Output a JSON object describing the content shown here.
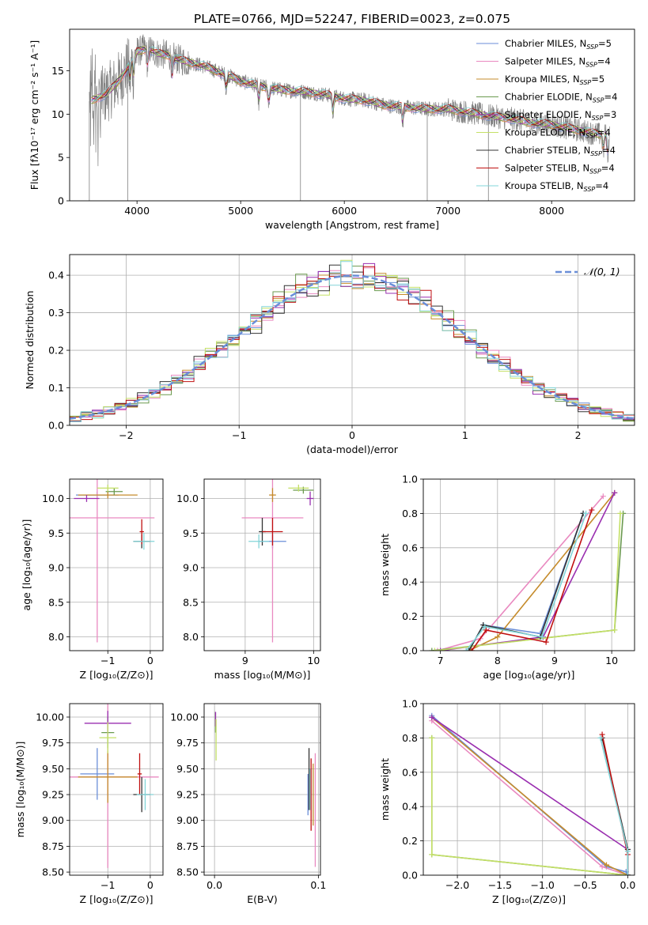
{
  "title": "PLATE=0766, MJD=52247, FIBERID=0023, z=0.075",
  "models": [
    {
      "name": "Chabrier MILES",
      "nssp": "5",
      "color": "#6a8ed8"
    },
    {
      "name": "Salpeter MILES",
      "nssp": "4",
      "color": "#e989c0"
    },
    {
      "name": "Kroupa MILES",
      "nssp": "5",
      "color": "#c58b2b"
    },
    {
      "name": "Chabrier ELODIE",
      "nssp": "4",
      "color": "#6b9a4f"
    },
    {
      "name": "Salpeter ELODIE",
      "nssp": "3",
      "color": "#9a2fb0"
    },
    {
      "name": "Kroupa ELODIE",
      "nssp": "4",
      "color": "#c4e066"
    },
    {
      "name": "Chabrier STELIB",
      "nssp": "4",
      "color": "#333333"
    },
    {
      "name": "Salpeter STELIB",
      "nssp": "4",
      "color": "#c01010"
    },
    {
      "name": "Kroupa STELIB",
      "nssp": "4",
      "color": "#82d4d8"
    }
  ],
  "nssp_prefix": ", N",
  "nssp_sub": "SSP",
  "chart_data": [
    {
      "id": "spectrum",
      "type": "line",
      "xlabel": "wavelength [Angstrom, rest frame]",
      "ylabel": "Flux [fλ10⁻¹⁷ erg cm⁻² s⁻¹ A⁻¹]",
      "xlim": [
        3350,
        8800
      ],
      "ylim": [
        0,
        19.8
      ],
      "xticks": [
        4000,
        5000,
        6000,
        7000,
        8000
      ],
      "yticks": [
        0,
        5,
        10,
        15
      ],
      "legend": "upper-right",
      "observed_color": "#808080",
      "continuum": {
        "x": [
          3540,
          3600,
          3700,
          3800,
          3900,
          4000,
          4100,
          4200,
          4300,
          4400,
          4500,
          4600,
          4700,
          4800,
          4900,
          5000,
          5200,
          5400,
          5600,
          5800,
          6000,
          6200,
          6400,
          6600,
          6800,
          7000,
          7200,
          7400,
          7600,
          7800,
          8000,
          8200,
          8400,
          8550
        ],
        "y": [
          11.5,
          11.8,
          12.3,
          13.5,
          15.2,
          17.2,
          17.6,
          17.0,
          16.8,
          16.3,
          16.0,
          15.7,
          15.3,
          14.8,
          14.4,
          13.8,
          13.2,
          12.8,
          12.6,
          12.3,
          11.8,
          11.6,
          11.0,
          10.8,
          10.6,
          10.6,
          10.2,
          9.8,
          9.5,
          9.0,
          8.8,
          8.3,
          7.8,
          7.5
        ]
      }
    },
    {
      "id": "residuals",
      "type": "histogram",
      "xlabel": "(data-model)/error",
      "ylabel": "Normed distribution",
      "xlim": [
        -2.5,
        2.5
      ],
      "ylim": [
        0,
        0.455
      ],
      "xticks": [
        -2,
        -1,
        0,
        1,
        2
      ],
      "yticks": [
        0.0,
        0.1,
        0.2,
        0.3,
        0.4
      ],
      "reference_label": "𝒩(0, 1)",
      "reference_color": "#6a8ed8",
      "bins": [
        -2.5,
        2.5,
        50
      ],
      "legend": "upper-right"
    },
    {
      "id": "age_vs_Z",
      "type": "errorbar",
      "xlabel": "Z [log₁₀(Z/Z⊙)]",
      "ylabel": "age  [log₁₀(age/yr)]",
      "xlim": [
        -1.9,
        0.3
      ],
      "ylim": [
        7.8,
        10.28
      ],
      "xticks": [
        -1,
        0
      ],
      "yticks": [
        8.0,
        8.5,
        9.0,
        9.5,
        10.0
      ],
      "points": [
        {
          "m": 0,
          "x": -1.25,
          "xerr": 0.5,
          "y": 10.05,
          "yerr": 0.05
        },
        {
          "m": 1,
          "x": -1.25,
          "xerr": 1.35,
          "y": 9.72,
          "yerr": 1.8
        },
        {
          "m": 2,
          "x": -1.0,
          "xerr": 0.7,
          "y": 10.05,
          "yerr": 0.05
        },
        {
          "m": 3,
          "x": -0.85,
          "xerr": 0.2,
          "y": 10.1,
          "yerr": 0.05
        },
        {
          "m": 4,
          "x": -1.5,
          "xerr": 0.3,
          "y": 10.0,
          "yerr": 0.05
        },
        {
          "m": 5,
          "x": -1.0,
          "xerr": 0.25,
          "y": 10.15,
          "yerr": 0.05
        },
        {
          "m": 6,
          "x": -0.2,
          "xerr": 0.2,
          "y": 9.38,
          "yerr": 0.1
        },
        {
          "m": 7,
          "x": -0.2,
          "xerr": 0.05,
          "y": 9.52,
          "yerr": 0.18
        },
        {
          "m": 8,
          "x": -0.15,
          "xerr": 0.25,
          "y": 9.38,
          "yerr": 0.12
        }
      ]
    },
    {
      "id": "age_vs_mass",
      "type": "errorbar",
      "xlabel": "mass [log₁₀(M/M⊙)]",
      "ylabel": "",
      "xlim": [
        8.4,
        10.1
      ],
      "ylim": [
        7.8,
        10.28
      ],
      "xticks": [
        9,
        10
      ],
      "yticks": [
        8.0,
        8.5,
        9.0,
        9.5,
        10.0
      ],
      "points": [
        {
          "m": 0,
          "x": 9.4,
          "xerr": 0.2,
          "y": 9.38,
          "yerr": 0.1
        },
        {
          "m": 1,
          "x": 9.4,
          "xerr": 0.45,
          "y": 9.72,
          "yerr": 1.8
        },
        {
          "m": 2,
          "x": 9.4,
          "xerr": 0.05,
          "y": 10.05,
          "yerr": 0.1
        },
        {
          "m": 3,
          "x": 9.85,
          "xerr": 0.15,
          "y": 10.12,
          "yerr": 0.05
        },
        {
          "m": 4,
          "x": 9.95,
          "xerr": 0.05,
          "y": 10.0,
          "yerr": 0.1
        },
        {
          "m": 5,
          "x": 9.78,
          "xerr": 0.15,
          "y": 10.15,
          "yerr": 0.05
        },
        {
          "m": 6,
          "x": 9.25,
          "xerr": 0.05,
          "y": 9.52,
          "yerr": 0.2
        },
        {
          "m": 7,
          "x": 9.4,
          "xerr": 0.15,
          "y": 9.52,
          "yerr": 0.2
        },
        {
          "m": 8,
          "x": 9.2,
          "xerr": 0.15,
          "y": 9.38,
          "yerr": 0.1
        }
      ]
    },
    {
      "id": "mass_weight_vs_age",
      "type": "line",
      "xlabel": "age  [log₁₀(age/yr)]",
      "ylabel": "mass weight",
      "xlim": [
        6.7,
        10.4
      ],
      "ylim": [
        0,
        1.0
      ],
      "xticks": [
        7,
        8,
        9,
        10
      ],
      "yticks": [
        0.0,
        0.2,
        0.4,
        0.6,
        0.8,
        1.0
      ],
      "series": [
        {
          "m": 0,
          "x": [
            7.5,
            7.75,
            8.75,
            9.5
          ],
          "y": [
            0.0,
            0.15,
            0.1,
            0.8
          ]
        },
        {
          "m": 1,
          "x": [
            6.95,
            7.7,
            9.85
          ],
          "y": [
            0.0,
            0.07,
            0.9
          ]
        },
        {
          "m": 2,
          "x": [
            7.5,
            8.0,
            10.05
          ],
          "y": [
            0.0,
            0.08,
            0.92
          ]
        },
        {
          "m": 3,
          "x": [
            6.85,
            10.05,
            10.2
          ],
          "y": [
            0.0,
            0.12,
            0.8
          ]
        },
        {
          "m": 4,
          "x": [
            7.0,
            8.8,
            10.05
          ],
          "y": [
            0.0,
            0.08,
            0.92
          ]
        },
        {
          "m": 5,
          "x": [
            6.9,
            10.05,
            10.15
          ],
          "y": [
            0.0,
            0.12,
            0.8
          ]
        },
        {
          "m": 6,
          "x": [
            7.5,
            7.75,
            8.75,
            9.5
          ],
          "y": [
            0.0,
            0.15,
            0.08,
            0.8
          ]
        },
        {
          "m": 7,
          "x": [
            7.55,
            7.8,
            8.85,
            9.65
          ],
          "y": [
            0.0,
            0.12,
            0.05,
            0.82
          ]
        },
        {
          "m": 8,
          "x": [
            7.45,
            7.78,
            8.78,
            9.55
          ],
          "y": [
            0.0,
            0.14,
            0.08,
            0.8
          ]
        }
      ]
    },
    {
      "id": "mass_vs_Z",
      "type": "errorbar",
      "xlabel": "Z [log₁₀(Z/Z⊙)]",
      "ylabel": "mass [log₁₀(M/M⊙)]",
      "xlim": [
        -1.9,
        0.3
      ],
      "ylim": [
        8.47,
        10.13
      ],
      "xticks": [
        -1,
        0
      ],
      "yticks": [
        8.5,
        8.75,
        9.0,
        9.25,
        9.5,
        9.75,
        10.0
      ],
      "points": [
        {
          "m": 0,
          "x": -1.25,
          "xerr": 0.4,
          "y": 9.45,
          "yerr": 0.25
        },
        {
          "m": 1,
          "x": -1.0,
          "xerr": 1.2,
          "y": 9.42,
          "yerr": 0.88
        },
        {
          "m": 2,
          "x": -1.0,
          "xerr": 0.7,
          "y": 9.42,
          "yerr": 0.25
        },
        {
          "m": 3,
          "x": -1.0,
          "xerr": 0.15,
          "y": 9.85,
          "yerr": 0.15
        },
        {
          "m": 4,
          "x": -1.0,
          "xerr": 0.55,
          "y": 9.94,
          "yerr": 0.12
        },
        {
          "m": 5,
          "x": -1.0,
          "xerr": 0.2,
          "y": 9.8,
          "yerr": 0.15
        },
        {
          "m": 6,
          "x": -0.2,
          "xerr": 0.2,
          "y": 9.25,
          "yerr": 0.17
        },
        {
          "m": 7,
          "x": -0.25,
          "xerr": 0.05,
          "y": 9.45,
          "yerr": 0.2
        },
        {
          "m": 8,
          "x": -0.12,
          "xerr": 0.2,
          "y": 9.25,
          "yerr": 0.15
        }
      ]
    },
    {
      "id": "mass_vs_EBV",
      "type": "errorbar",
      "xlabel": "E(B-V)",
      "ylabel": "",
      "xlim": [
        -0.01,
        0.102
      ],
      "ylim": [
        8.47,
        10.13
      ],
      "xticks": [
        0.0,
        0.1
      ],
      "yticks": [
        8.5,
        8.75,
        9.0,
        9.25,
        9.5,
        9.75,
        10.0
      ],
      "points": [
        {
          "m": 0,
          "x": 0.09,
          "xerr": 0,
          "y": 9.25,
          "yerr": 0.2
        },
        {
          "m": 1,
          "x": 0.097,
          "xerr": 0,
          "y": 9.1,
          "yerr": 0.55
        },
        {
          "m": 2,
          "x": 0.095,
          "xerr": 0,
          "y": 9.25,
          "yerr": 0.3
        },
        {
          "m": 3,
          "x": 0.001,
          "xerr": 0,
          "y": 9.95,
          "yerr": 0.1
        },
        {
          "m": 4,
          "x": 0.001,
          "xerr": 0,
          "y": 9.98,
          "yerr": 0.07
        },
        {
          "m": 5,
          "x": 0.0015,
          "xerr": 0,
          "y": 9.78,
          "yerr": 0.2
        },
        {
          "m": 6,
          "x": 0.091,
          "xerr": 0,
          "y": 9.4,
          "yerr": 0.3
        },
        {
          "m": 7,
          "x": 0.093,
          "xerr": 0,
          "y": 9.25,
          "yerr": 0.35
        },
        {
          "m": 8,
          "x": 0.092,
          "xerr": 0,
          "y": 9.3,
          "yerr": 0.2
        }
      ]
    },
    {
      "id": "mass_weight_vs_Z",
      "type": "line",
      "xlabel": "Z [log₁₀(Z/Z⊙)]",
      "ylabel": "mass weight",
      "xlim": [
        -2.4,
        0.08
      ],
      "ylim": [
        0,
        1.0
      ],
      "xticks": [
        -2.0,
        -1.5,
        -1.0,
        -0.5,
        0.0
      ],
      "yticks": [
        0.0,
        0.2,
        0.4,
        0.6,
        0.8,
        1.0
      ],
      "series": [
        {
          "m": 0,
          "x": [
            -2.3,
            -0.25,
            -0.02,
            0.0
          ],
          "y": [
            0.93,
            0.05,
            0.02,
            0.0
          ]
        },
        {
          "m": 1,
          "x": [
            -2.3,
            -0.3,
            0.0
          ],
          "y": [
            0.9,
            0.05,
            0.0
          ]
        },
        {
          "m": 2,
          "x": [
            -2.3,
            -0.25,
            0.0
          ],
          "y": [
            0.92,
            0.06,
            0.0
          ]
        },
        {
          "m": 3,
          "x": [
            -2.3,
            -2.3,
            0.0
          ],
          "y": [
            0.8,
            0.12,
            0.0
          ]
        },
        {
          "m": 4,
          "x": [
            -2.3,
            0.0,
            0.0
          ],
          "y": [
            0.92,
            0.15,
            0.0
          ]
        },
        {
          "m": 5,
          "x": [
            -2.3,
            -2.3,
            0.0
          ],
          "y": [
            0.8,
            0.12,
            0.0
          ]
        },
        {
          "m": 6,
          "x": [
            -0.3,
            0.0,
            0.0
          ],
          "y": [
            0.8,
            0.15,
            0.0
          ]
        },
        {
          "m": 7,
          "x": [
            -0.3,
            0.0,
            0.0
          ],
          "y": [
            0.82,
            0.12,
            0.0
          ]
        },
        {
          "m": 8,
          "x": [
            -0.32,
            0.0,
            0.0
          ],
          "y": [
            0.8,
            0.14,
            0.0
          ]
        }
      ]
    }
  ]
}
